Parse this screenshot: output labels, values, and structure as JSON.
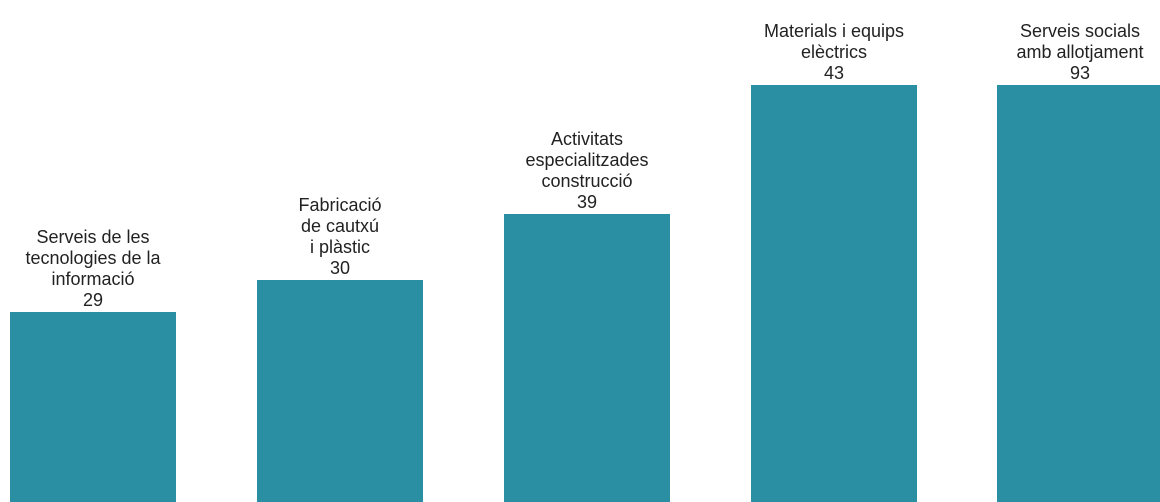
{
  "chart_data": {
    "type": "bar",
    "title": "",
    "xlabel": "",
    "ylabel": "",
    "grid": false,
    "legend": "none",
    "color": "#2a8fa3",
    "categories": [
      [
        "Serveis de les",
        "tecnologies de la",
        "informació"
      ],
      [
        "Fabricació",
        "de cautxú",
        "i plàstic"
      ],
      [
        "Activitats",
        "especialitzades",
        "construcció"
      ],
      [
        "Materials i equips",
        "elèctrics"
      ],
      [
        "Serveis socials",
        "amb allotjament"
      ]
    ],
    "values": [
      29,
      30,
      39,
      43,
      93
    ],
    "value_labels": [
      "29",
      "30",
      "39",
      "43",
      "93"
    ]
  }
}
